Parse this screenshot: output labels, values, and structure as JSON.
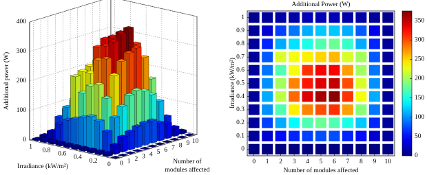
{
  "chart_data": [
    {
      "type": "bar3d",
      "zlabel": "Additional power (W)",
      "ylabel": "Irradiance (kW/m²)",
      "xlabel": [
        "Number of",
        "modules affected"
      ],
      "x": [
        0,
        1,
        2,
        3,
        4,
        5,
        6,
        7,
        8,
        9,
        10
      ],
      "y": [
        0,
        0.1,
        0.2,
        0.3,
        0.4,
        0.5,
        0.6,
        0.7,
        0.8,
        0.9,
        1
      ],
      "xlim": [
        -0.5,
        10.5
      ],
      "ylim": [
        -0.05,
        1.05
      ],
      "zlim": [
        0,
        400
      ],
      "xticks": [
        0,
        1,
        2,
        3,
        4,
        5,
        6,
        7,
        8,
        9,
        10
      ],
      "yticks": [
        0,
        0.2,
        0.4,
        0.6,
        0.8,
        1
      ],
      "zticks": [
        0,
        100,
        200,
        300,
        400
      ],
      "clim": [
        0,
        375
      ],
      "colormap": "jet",
      "grid": true,
      "values": [
        [
          0,
          0,
          0,
          0,
          0,
          0,
          0,
          0,
          0,
          0,
          0
        ],
        [
          10,
          30,
          50,
          60,
          70,
          75,
          75,
          60,
          50,
          30,
          10
        ],
        [
          10,
          70,
          110,
          140,
          170,
          180,
          170,
          150,
          120,
          60,
          10
        ],
        [
          10,
          100,
          170,
          240,
          280,
          300,
          310,
          270,
          190,
          90,
          10
        ],
        [
          10,
          110,
          210,
          290,
          340,
          360,
          370,
          310,
          230,
          110,
          10
        ],
        [
          10,
          100,
          200,
          280,
          320,
          340,
          350,
          300,
          220,
          100,
          10
        ],
        [
          10,
          90,
          170,
          230,
          310,
          330,
          330,
          270,
          200,
          90,
          10
        ],
        [
          10,
          80,
          220,
          230,
          240,
          250,
          260,
          220,
          200,
          80,
          10
        ],
        [
          10,
          60,
          110,
          130,
          150,
          170,
          180,
          160,
          110,
          60,
          10
        ],
        [
          10,
          30,
          70,
          90,
          110,
          120,
          120,
          110,
          80,
          40,
          10
        ],
        [
          5,
          10,
          15,
          15,
          20,
          20,
          20,
          15,
          15,
          10,
          5
        ]
      ]
    },
    {
      "type": "heatmap",
      "title": "Additional Power (W)",
      "xlabel": "Number of modules affected",
      "ylabel": "Irradiance (kW/m²)",
      "x": [
        0,
        1,
        2,
        3,
        4,
        5,
        6,
        7,
        8,
        9,
        10
      ],
      "y": [
        0,
        0.1,
        0.2,
        0.3,
        0.4,
        0.5,
        0.6,
        0.7,
        0.8,
        0.9,
        1
      ],
      "xlim": [
        -0.5,
        10.5
      ],
      "ylim": [
        -0.05,
        1.05
      ],
      "xticks": [
        0,
        1,
        2,
        3,
        4,
        5,
        6,
        7,
        8,
        9,
        10
      ],
      "yticks": [
        0,
        0.1,
        0.2,
        0.3,
        0.4,
        0.5,
        0.6,
        0.7,
        0.8,
        0.9,
        1
      ],
      "clim": [
        0,
        375
      ],
      "cticks": [
        0,
        50,
        100,
        150,
        200,
        250,
        300,
        350
      ],
      "colormap": "jet",
      "values": [
        [
          0,
          0,
          0,
          0,
          0,
          0,
          0,
          0,
          0,
          0,
          0
        ],
        [
          10,
          30,
          50,
          60,
          70,
          75,
          75,
          60,
          50,
          30,
          10
        ],
        [
          10,
          70,
          110,
          140,
          170,
          180,
          170,
          150,
          120,
          60,
          10
        ],
        [
          10,
          100,
          170,
          240,
          280,
          300,
          310,
          270,
          190,
          90,
          10
        ],
        [
          10,
          110,
          210,
          290,
          340,
          360,
          370,
          310,
          230,
          110,
          10
        ],
        [
          10,
          100,
          200,
          280,
          320,
          340,
          350,
          300,
          220,
          100,
          10
        ],
        [
          10,
          90,
          170,
          230,
          310,
          330,
          330,
          270,
          200,
          90,
          10
        ],
        [
          10,
          80,
          220,
          230,
          240,
          250,
          260,
          220,
          200,
          80,
          10
        ],
        [
          10,
          60,
          110,
          130,
          150,
          170,
          180,
          160,
          110,
          60,
          10
        ],
        [
          10,
          30,
          70,
          90,
          110,
          120,
          120,
          110,
          80,
          40,
          10
        ],
        [
          5,
          10,
          15,
          15,
          20,
          20,
          20,
          15,
          15,
          10,
          5
        ]
      ]
    }
  ]
}
